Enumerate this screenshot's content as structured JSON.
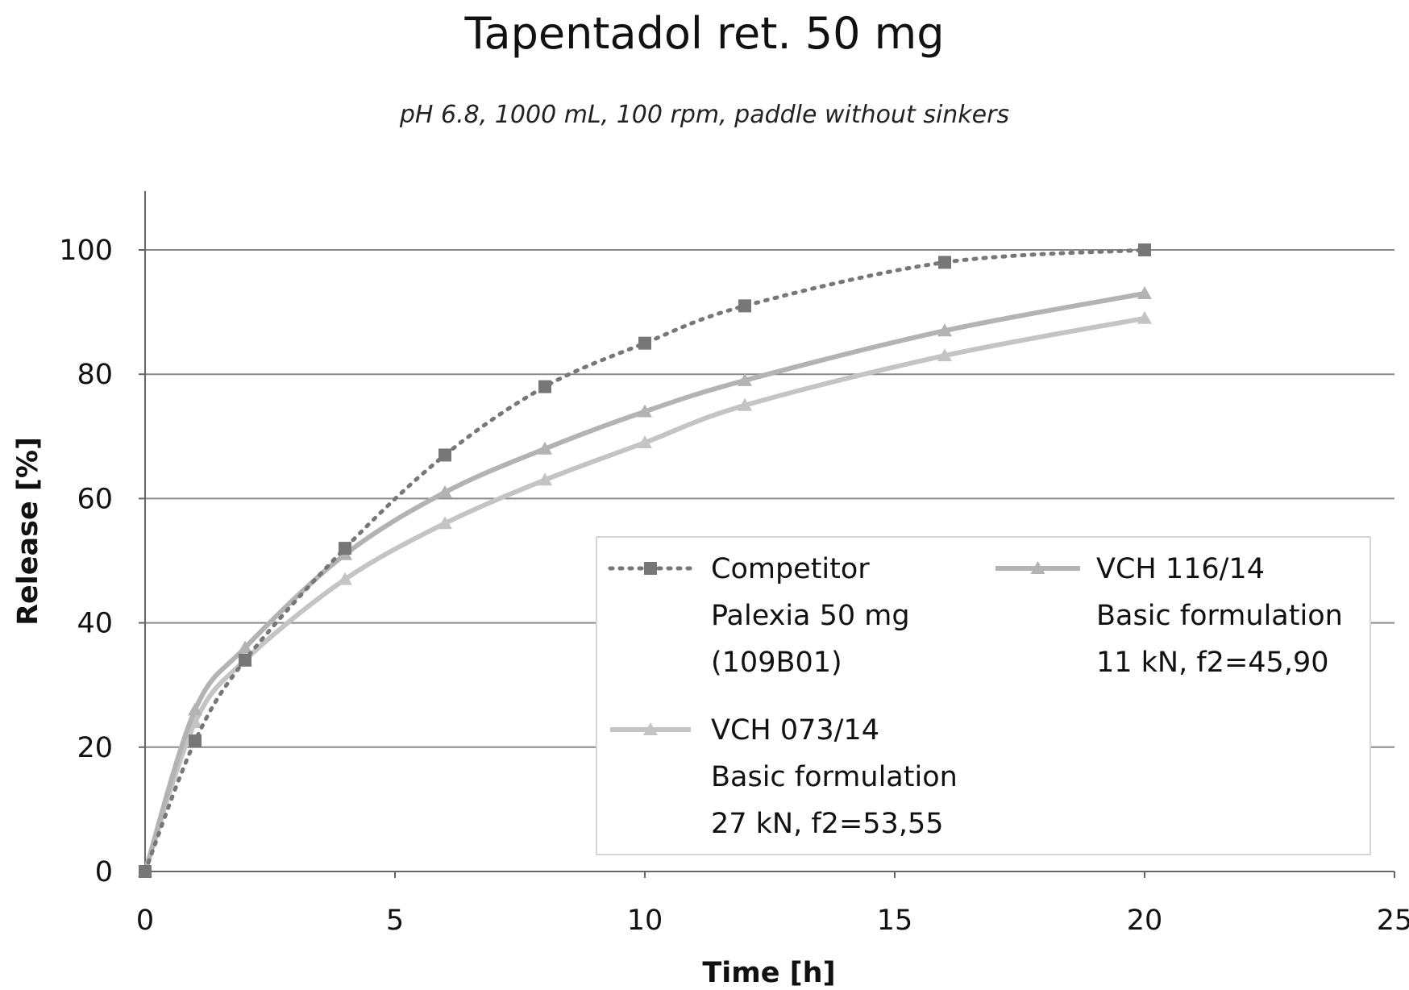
{
  "chart_data": {
    "type": "line",
    "title": "Tapentadol ret. 50 mg",
    "subtitle": "pH 6.8, 1000 mL, 100 rpm, paddle without sinkers",
    "xlabel": "Time [h]",
    "ylabel": "Release [%]",
    "xlim": [
      0,
      25
    ],
    "ylim": [
      0,
      100
    ],
    "xticks": [
      "0",
      "5",
      "10",
      "15",
      "20",
      "25"
    ],
    "yticks": [
      "0",
      "20",
      "40",
      "60",
      "80",
      "100"
    ],
    "grid": "horizontal",
    "legend_position": "lower-right",
    "series": [
      {
        "name": "Competitor Palexia 50 mg (109B01)",
        "legend_lines": [
          "Competitor",
          "Palexia 50 mg",
          "(109B01)"
        ],
        "style": "dotted",
        "marker": "square",
        "color": "#777777",
        "x": [
          0,
          1,
          2,
          4,
          6,
          8,
          10,
          12,
          16,
          20
        ],
        "y": [
          0,
          21,
          34,
          52,
          67,
          78,
          85,
          91,
          98,
          100
        ]
      },
      {
        "name": "VCH 116/14 Basic formulation 11 kN, f2=45,90",
        "legend_lines": [
          "VCH 116/14",
          "Basic formulation",
          "11 kN, f2=45,90"
        ],
        "style": "solid",
        "marker": "triangle",
        "color": "#b3b3b3",
        "x": [
          0,
          1,
          2,
          4,
          6,
          8,
          10,
          12,
          16,
          20
        ],
        "y": [
          0,
          26,
          36,
          51,
          61,
          68,
          74,
          79,
          87,
          93
        ]
      },
      {
        "name": "VCH 073/14 Basic formulation 27 kN, f2=53,55",
        "legend_lines": [
          "VCH 073/14",
          "Basic formulation",
          "27 kN, f2=53,55"
        ],
        "style": "solid",
        "marker": "triangle",
        "color": "#c4c4c4",
        "x": [
          0,
          1,
          2,
          4,
          6,
          8,
          10,
          12,
          16,
          20
        ],
        "y": [
          0,
          24,
          34,
          47,
          56,
          63,
          69,
          75,
          83,
          89
        ]
      }
    ]
  }
}
